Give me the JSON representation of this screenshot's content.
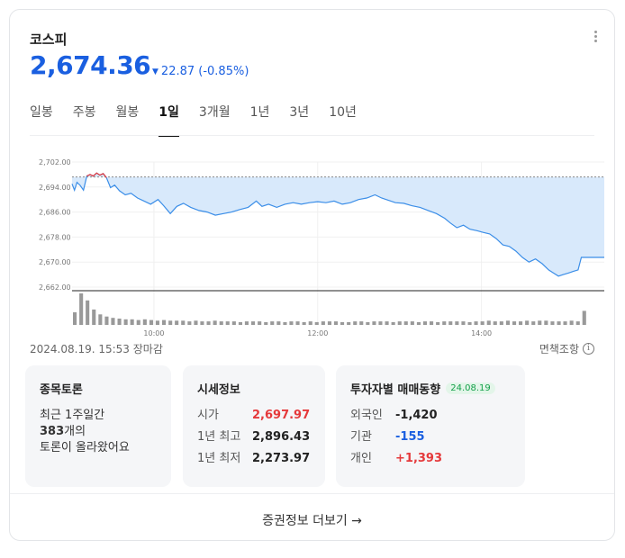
{
  "header": {
    "title": "코스피",
    "price": "2,674.36",
    "change": "22.87 (-0.85%)",
    "change_direction_icon": "triangle-down-icon"
  },
  "tabs": [
    {
      "label": "일봉",
      "active": false
    },
    {
      "label": "주봉",
      "active": false
    },
    {
      "label": "월봉",
      "active": false
    },
    {
      "label": "1일",
      "active": true
    },
    {
      "label": "3개월",
      "active": false
    },
    {
      "label": "1년",
      "active": false
    },
    {
      "label": "3년",
      "active": false
    },
    {
      "label": "10년",
      "active": false
    }
  ],
  "chart_data": {
    "type": "area",
    "y_ticks": [
      "2,702.00",
      "2,694.00",
      "2,686.00",
      "2,678.00",
      "2,670.00",
      "2,662.00"
    ],
    "x_ticks": [
      "10:00",
      "12:00",
      "14:00"
    ],
    "ylim": [
      2662,
      2702
    ],
    "xlim": [
      9.0,
      15.5
    ],
    "reference_level": 2697.23,
    "colors": {
      "line": "#3b8ee8",
      "fill": "#d8e9fb",
      "above_line": "#e5393b",
      "reference": "#888888",
      "volume": "#999999"
    },
    "price_series": [
      [
        9.0,
        2695.0
      ],
      [
        9.03,
        2693.0
      ],
      [
        9.06,
        2695.5
      ],
      [
        9.1,
        2694.5
      ],
      [
        9.14,
        2693.0
      ],
      [
        9.18,
        2697.5
      ],
      [
        9.22,
        2698.0
      ],
      [
        9.26,
        2697.5
      ],
      [
        9.3,
        2698.5
      ],
      [
        9.34,
        2697.8
      ],
      [
        9.38,
        2698.3
      ],
      [
        9.42,
        2697.0
      ],
      [
        9.47,
        2693.8
      ],
      [
        9.52,
        2694.6
      ],
      [
        9.58,
        2692.8
      ],
      [
        9.65,
        2691.5
      ],
      [
        9.72,
        2692.0
      ],
      [
        9.8,
        2690.5
      ],
      [
        9.88,
        2689.5
      ],
      [
        9.96,
        2688.5
      ],
      [
        10.05,
        2690.0
      ],
      [
        10.12,
        2688.0
      ],
      [
        10.2,
        2685.5
      ],
      [
        10.28,
        2687.8
      ],
      [
        10.36,
        2688.8
      ],
      [
        10.45,
        2687.5
      ],
      [
        10.55,
        2686.5
      ],
      [
        10.65,
        2686.0
      ],
      [
        10.75,
        2685.0
      ],
      [
        10.85,
        2685.5
      ],
      [
        10.95,
        2686.0
      ],
      [
        11.05,
        2686.8
      ],
      [
        11.15,
        2687.5
      ],
      [
        11.25,
        2689.5
      ],
      [
        11.32,
        2687.8
      ],
      [
        11.4,
        2688.5
      ],
      [
        11.5,
        2687.5
      ],
      [
        11.6,
        2688.5
      ],
      [
        11.7,
        2689.0
      ],
      [
        11.8,
        2688.5
      ],
      [
        11.9,
        2689.0
      ],
      [
        12.0,
        2689.3
      ],
      [
        12.1,
        2689.0
      ],
      [
        12.2,
        2689.5
      ],
      [
        12.3,
        2688.5
      ],
      [
        12.4,
        2689.0
      ],
      [
        12.5,
        2690.0
      ],
      [
        12.6,
        2690.5
      ],
      [
        12.7,
        2691.5
      ],
      [
        12.78,
        2690.5
      ],
      [
        12.86,
        2689.8
      ],
      [
        12.95,
        2689.0
      ],
      [
        13.05,
        2688.8
      ],
      [
        13.15,
        2688.0
      ],
      [
        13.25,
        2687.5
      ],
      [
        13.35,
        2686.5
      ],
      [
        13.45,
        2685.5
      ],
      [
        13.55,
        2684.0
      ],
      [
        13.62,
        2682.5
      ],
      [
        13.7,
        2681.0
      ],
      [
        13.78,
        2681.8
      ],
      [
        13.86,
        2680.5
      ],
      [
        13.95,
        2680.0
      ],
      [
        14.02,
        2679.5
      ],
      [
        14.1,
        2679.0
      ],
      [
        14.18,
        2677.5
      ],
      [
        14.26,
        2675.5
      ],
      [
        14.34,
        2675.0
      ],
      [
        14.42,
        2673.5
      ],
      [
        14.5,
        2671.5
      ],
      [
        14.58,
        2670.0
      ],
      [
        14.66,
        2671.0
      ],
      [
        14.74,
        2669.5
      ],
      [
        14.82,
        2667.5
      ],
      [
        14.88,
        2666.5
      ],
      [
        14.94,
        2665.5
      ],
      [
        15.0,
        2666.0
      ],
      [
        15.06,
        2666.5
      ],
      [
        15.12,
        2667.0
      ],
      [
        15.18,
        2667.5
      ],
      [
        15.22,
        2671.5
      ],
      [
        15.24,
        2671.5
      ],
      [
        15.5,
        2671.5
      ]
    ],
    "volume": [
      18,
      45,
      35,
      22,
      15,
      12,
      10,
      9,
      8,
      8,
      7,
      8,
      7,
      6,
      7,
      6,
      6,
      6,
      5,
      6,
      5,
      5,
      6,
      5,
      5,
      5,
      4,
      5,
      5,
      5,
      4,
      5,
      5,
      4,
      5,
      5,
      4,
      5,
      4,
      5,
      5,
      5,
      4,
      4,
      5,
      5,
      4,
      5,
      5,
      5,
      4,
      5,
      5,
      5,
      4,
      5,
      5,
      4,
      5,
      5,
      5,
      5,
      4,
      5,
      5,
      6,
      5,
      5,
      6,
      5,
      5,
      6,
      5,
      6,
      6,
      5,
      5,
      5,
      6,
      5,
      20
    ]
  },
  "status": {
    "datetime": "2024.08.19. 15:53 장마감",
    "disclaimer": "면책조항",
    "disclaimer_icon": "info-icon"
  },
  "talk": {
    "title": "종목토론",
    "line1": "최근 1주일간",
    "count": "383",
    "count_suffix": "개의",
    "line3": "토론이 올라왔어요"
  },
  "quote": {
    "title": "시세정보",
    "rows": [
      {
        "key": "시가",
        "value": "2,697.97"
      },
      {
        "key": "1년 최고",
        "value": "2,896.43"
      },
      {
        "key": "1년 최저",
        "value": "2,273.97"
      }
    ]
  },
  "investors": {
    "title": "투자자별 매매동향",
    "badge": "24.08.19",
    "rows": [
      {
        "key": "외국인",
        "value": "-1,420"
      },
      {
        "key": "기관",
        "value": "-155"
      },
      {
        "key": "개인",
        "value": "+1,393"
      }
    ]
  },
  "footer": {
    "more": "증권정보 더보기 →"
  }
}
